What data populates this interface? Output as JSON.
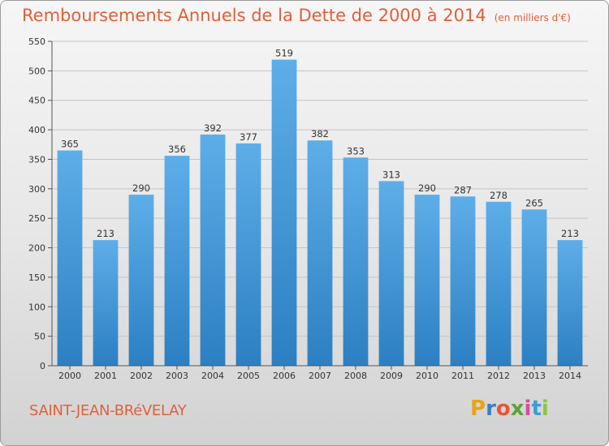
{
  "header": {
    "title": "Remboursements Annuels de la Dette de 2000 à 2014",
    "subtitle": "(en milliers d'€)"
  },
  "footer": {
    "commune": "SAINT-JEAN-BRéVELAY",
    "logo_letters": [
      "P",
      "r",
      "o",
      "x",
      "i",
      "t",
      "i"
    ],
    "logo_colors": [
      "#e8a317",
      "#3a7fc4",
      "#e8553a",
      "#5aa33a",
      "#d14fa0",
      "#3a9fd8",
      "#8cc63f"
    ]
  },
  "chart_data": {
    "type": "bar",
    "title": "Remboursements Annuels de la Dette de 2000 à 2014",
    "categories": [
      "2000",
      "2001",
      "2002",
      "2003",
      "2004",
      "2005",
      "2006",
      "2007",
      "2008",
      "2009",
      "2010",
      "2011",
      "2012",
      "2013",
      "2014"
    ],
    "values": [
      365,
      213,
      290,
      356,
      392,
      377,
      519,
      382,
      353,
      313,
      290,
      287,
      278,
      265,
      213
    ],
    "ylim": [
      0,
      550
    ],
    "yticks": [
      0,
      50,
      100,
      150,
      200,
      250,
      300,
      350,
      400,
      450,
      500,
      550
    ],
    "grid": true,
    "bar_color_top": "#5daee8",
    "bar_color_bottom": "#2c7fc2"
  }
}
